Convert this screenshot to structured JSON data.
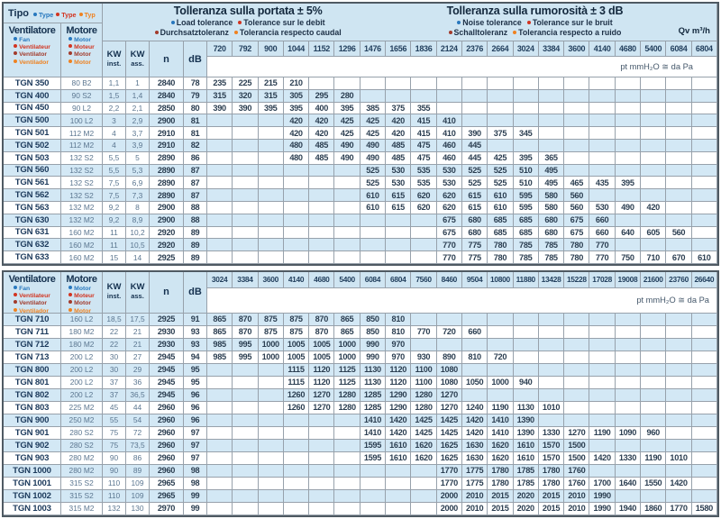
{
  "page": {
    "qv_unit_label": "Qv m³/h",
    "pt_unit_label": "pt mmH₂O ≅ da Pa"
  },
  "legend": {
    "tipo_label": "Tipo",
    "tipo_items": [
      {
        "text": "Type",
        "c": "blue"
      },
      {
        "text": "Type",
        "c": "red"
      },
      {
        "text": "Typ",
        "c": "orange"
      }
    ],
    "flow_title": "Tolleranza sulla portata ± 5%",
    "flow_lines": [
      [
        {
          "text": "Load tolerance",
          "c": "blue"
        },
        {
          "text": "Tolerance sur le debit",
          "c": "red"
        }
      ],
      [
        {
          "text": "Durchsatztoleranz",
          "c": "darkred"
        },
        {
          "text": "Tolerancia respecto caudal",
          "c": "orange"
        }
      ]
    ],
    "noise_title": "Tolleranza sulla rumorosità ± 3 dB",
    "noise_lines": [
      [
        {
          "text": "Noise tolerance",
          "c": "blue"
        },
        {
          "text": "Tolerance sur le bruit",
          "c": "red"
        }
      ],
      [
        {
          "text": "Schalltoleranz",
          "c": "darkred"
        },
        {
          "text": "Tolerancia respecto a ruido",
          "c": "orange"
        }
      ]
    ]
  },
  "column_headers": {
    "ventilatore_label": "Ventilatore",
    "ventilatore_items": [
      {
        "text": "Fan",
        "c": "blue"
      },
      {
        "text": "Ventilateur",
        "c": "red"
      },
      {
        "text": "Ventilator",
        "c": "darkred"
      },
      {
        "text": "Ventilador",
        "c": "orange"
      }
    ],
    "motore_label": "Motore",
    "motore_items": [
      {
        "text": "Motor",
        "c": "blue"
      },
      {
        "text": "Moteur",
        "c": "red"
      },
      {
        "text": "Motor",
        "c": "darkred"
      },
      {
        "text": "Motor",
        "c": "orange"
      }
    ],
    "kw_inst": {
      "top": "KW",
      "bottom": "inst."
    },
    "kw_ass": {
      "top": "KW",
      "bottom": "ass."
    },
    "n_label": "n",
    "db_label": "dB"
  },
  "colors": {
    "accent_blue": "#2878be",
    "accent_red": "#d23420",
    "accent_darkred": "#a23b2c",
    "accent_orange": "#ef8220",
    "header_bg": "#cfe5f2",
    "row_alt_bg": "#d3e8f5"
  },
  "table1": {
    "qv_columns": [
      720,
      792,
      900,
      1044,
      1152,
      1296,
      1476,
      1656,
      1836,
      2124,
      2376,
      2664,
      3024,
      3384,
      3600,
      4140,
      4680,
      5400,
      6084,
      6804
    ],
    "rows": [
      {
        "type": "TGN 350",
        "motor": "80 B2",
        "kw_inst": "1,1",
        "kw_ass": "1",
        "n": "2840",
        "db": "78",
        "start": 0,
        "values": [
          235,
          225,
          215,
          210
        ]
      },
      {
        "type": "TGN 400",
        "motor": "90 S2",
        "kw_inst": "1,5",
        "kw_ass": "1,4",
        "n": "2840",
        "db": "79",
        "start": 0,
        "values": [
          315,
          320,
          315,
          305,
          295,
          280
        ]
      },
      {
        "type": "TGN 450",
        "motor": "90 L2",
        "kw_inst": "2,2",
        "kw_ass": "2,1",
        "n": "2850",
        "db": "80",
        "start": 0,
        "values": [
          390,
          390,
          395,
          395,
          400,
          395,
          385,
          375,
          355
        ]
      },
      {
        "type": "TGN 500",
        "motor": "100 L2",
        "kw_inst": "3",
        "kw_ass": "2,9",
        "n": "2900",
        "db": "81",
        "start": 3,
        "values": [
          420,
          420,
          425,
          425,
          420,
          415,
          410
        ]
      },
      {
        "type": "TGN 501",
        "motor": "112 M2",
        "kw_inst": "4",
        "kw_ass": "3,7",
        "n": "2910",
        "db": "81",
        "start": 3,
        "values": [
          420,
          420,
          425,
          425,
          420,
          415,
          410,
          390,
          375,
          345
        ]
      },
      {
        "type": "TGN 502",
        "motor": "112 M2",
        "kw_inst": "4",
        "kw_ass": "3,9",
        "n": "2910",
        "db": "82",
        "start": 3,
        "values": [
          480,
          485,
          490,
          490,
          485,
          475,
          460,
          445
        ]
      },
      {
        "type": "TGN 503",
        "motor": "132 S2",
        "kw_inst": "5,5",
        "kw_ass": "5",
        "n": "2890",
        "db": "86",
        "start": 3,
        "values": [
          480,
          485,
          490,
          490,
          485,
          475,
          460,
          445,
          425,
          395,
          365
        ]
      },
      {
        "type": "TGN 560",
        "motor": "132 S2",
        "kw_inst": "5,5",
        "kw_ass": "5,3",
        "n": "2890",
        "db": "87",
        "start": 6,
        "values": [
          525,
          530,
          535,
          530,
          525,
          525,
          510,
          495
        ]
      },
      {
        "type": "TGN 561",
        "motor": "132 S2",
        "kw_inst": "7,5",
        "kw_ass": "6,9",
        "n": "2890",
        "db": "87",
        "start": 6,
        "values": [
          525,
          530,
          535,
          530,
          525,
          525,
          510,
          495,
          465,
          435,
          395
        ]
      },
      {
        "type": "TGN 562",
        "motor": "132 S2",
        "kw_inst": "7,5",
        "kw_ass": "7,3",
        "n": "2890",
        "db": "87",
        "start": 6,
        "values": [
          610,
          615,
          620,
          620,
          615,
          610,
          595,
          580,
          560
        ]
      },
      {
        "type": "TGN 563",
        "motor": "132 M2",
        "kw_inst": "9,2",
        "kw_ass": "8",
        "n": "2900",
        "db": "88",
        "start": 6,
        "values": [
          610,
          615,
          620,
          620,
          615,
          610,
          595,
          580,
          560,
          530,
          490,
          420
        ]
      },
      {
        "type": "TGN 630",
        "motor": "132 M2",
        "kw_inst": "9,2",
        "kw_ass": "8,9",
        "n": "2900",
        "db": "88",
        "start": 9,
        "values": [
          675,
          680,
          685,
          685,
          680,
          675,
          660
        ]
      },
      {
        "type": "TGN 631",
        "motor": "160 M2",
        "kw_inst": "11",
        "kw_ass": "10,2",
        "n": "2920",
        "db": "89",
        "start": 9,
        "values": [
          675,
          680,
          685,
          685,
          680,
          675,
          660,
          640,
          605,
          560
        ]
      },
      {
        "type": "TGN 632",
        "motor": "160 M2",
        "kw_inst": "11",
        "kw_ass": "10,5",
        "n": "2920",
        "db": "89",
        "start": 9,
        "values": [
          770,
          775,
          780,
          785,
          785,
          780,
          770
        ]
      },
      {
        "type": "TGN 633",
        "motor": "160 M2",
        "kw_inst": "15",
        "kw_ass": "14",
        "n": "2925",
        "db": "89",
        "start": 9,
        "values": [
          770,
          775,
          780,
          785,
          785,
          780,
          770,
          750,
          710,
          670,
          610
        ]
      }
    ]
  },
  "table2": {
    "qv_columns": [
      3024,
      3384,
      3600,
      4140,
      4680,
      5400,
      6084,
      6804,
      7560,
      8460,
      9504,
      10800,
      11880,
      13428,
      15228,
      17028,
      19008,
      21600,
      23760,
      26640
    ],
    "rows": [
      {
        "type": "TGN 710",
        "motor": "160 L2",
        "kw_inst": "18,5",
        "kw_ass": "17,5",
        "n": "2925",
        "db": "91",
        "start": 0,
        "values": [
          865,
          870,
          875,
          875,
          870,
          865,
          850,
          810
        ]
      },
      {
        "type": "TGN 711",
        "motor": "180 M2",
        "kw_inst": "22",
        "kw_ass": "21",
        "n": "2930",
        "db": "93",
        "start": 0,
        "values": [
          865,
          870,
          875,
          875,
          870,
          865,
          850,
          810,
          770,
          720,
          660
        ]
      },
      {
        "type": "TGN 712",
        "motor": "180 M2",
        "kw_inst": "22",
        "kw_ass": "21",
        "n": "2930",
        "db": "93",
        "start": 0,
        "values": [
          985,
          995,
          1000,
          1005,
          1005,
          1000,
          990,
          970
        ]
      },
      {
        "type": "TGN 713",
        "motor": "200 L2",
        "kw_inst": "30",
        "kw_ass": "27",
        "n": "2945",
        "db": "94",
        "start": 0,
        "values": [
          985,
          995,
          1000,
          1005,
          1005,
          1000,
          990,
          970,
          930,
          890,
          810,
          720
        ]
      },
      {
        "type": "TGN 800",
        "motor": "200 L2",
        "kw_inst": "30",
        "kw_ass": "29",
        "n": "2945",
        "db": "95",
        "start": 3,
        "values": [
          1115,
          1120,
          1125,
          1130,
          1120,
          1100,
          1080
        ]
      },
      {
        "type": "TGN 801",
        "motor": "200 L2",
        "kw_inst": "37",
        "kw_ass": "36",
        "n": "2945",
        "db": "95",
        "start": 3,
        "values": [
          1115,
          1120,
          1125,
          1130,
          1120,
          1100,
          1080,
          1050,
          1000,
          940
        ]
      },
      {
        "type": "TGN 802",
        "motor": "200 L2",
        "kw_inst": "37",
        "kw_ass": "36,5",
        "n": "2945",
        "db": "96",
        "start": 3,
        "values": [
          1260,
          1270,
          1280,
          1285,
          1290,
          1280,
          1270
        ]
      },
      {
        "type": "TGN 803",
        "motor": "225 M2",
        "kw_inst": "45",
        "kw_ass": "44",
        "n": "2960",
        "db": "96",
        "start": 3,
        "values": [
          1260,
          1270,
          1280,
          1285,
          1290,
          1280,
          1270,
          1240,
          1190,
          1130,
          1010
        ]
      },
      {
        "type": "TGN 900",
        "motor": "250 M2",
        "kw_inst": "55",
        "kw_ass": "54",
        "n": "2960",
        "db": "96",
        "start": 6,
        "values": [
          1410,
          1420,
          1425,
          1425,
          1420,
          1410,
          1390
        ]
      },
      {
        "type": "TGN 901",
        "motor": "280 S2",
        "kw_inst": "75",
        "kw_ass": "72",
        "n": "2960",
        "db": "97",
        "start": 6,
        "values": [
          1410,
          1420,
          1425,
          1425,
          1420,
          1410,
          1390,
          1330,
          1270,
          1190,
          1090,
          960
        ]
      },
      {
        "type": "TGN 902",
        "motor": "280 S2",
        "kw_inst": "75",
        "kw_ass": "73,5",
        "n": "2960",
        "db": "97",
        "start": 6,
        "values": [
          1595,
          1610,
          1620,
          1625,
          1630,
          1620,
          1610,
          1570,
          1500
        ]
      },
      {
        "type": "TGN 903",
        "motor": "280 M2",
        "kw_inst": "90",
        "kw_ass": "86",
        "n": "2960",
        "db": "97",
        "start": 6,
        "values": [
          1595,
          1610,
          1620,
          1625,
          1630,
          1620,
          1610,
          1570,
          1500,
          1420,
          1330,
          1190,
          1010
        ]
      },
      {
        "type": "TGN 1000",
        "motor": "280 M2",
        "kw_inst": "90",
        "kw_ass": "89",
        "n": "2960",
        "db": "98",
        "start": 9,
        "values": [
          1770,
          1775,
          1780,
          1785,
          1780,
          1760
        ]
      },
      {
        "type": "TGN 1001",
        "motor": "315 S2",
        "kw_inst": "110",
        "kw_ass": "109",
        "n": "2965",
        "db": "98",
        "start": 9,
        "values": [
          1770,
          1775,
          1780,
          1785,
          1780,
          1760,
          1700,
          1640,
          1550,
          1420
        ]
      },
      {
        "type": "TGN 1002",
        "motor": "315 S2",
        "kw_inst": "110",
        "kw_ass": "109",
        "n": "2965",
        "db": "99",
        "start": 9,
        "values": [
          2000,
          2010,
          2015,
          2020,
          2015,
          2010,
          1990
        ]
      },
      {
        "type": "TGN 1003",
        "motor": "315 M2",
        "kw_inst": "132",
        "kw_ass": "130",
        "n": "2970",
        "db": "99",
        "start": 9,
        "values": [
          2000,
          2010,
          2015,
          2020,
          2015,
          2010,
          1990,
          1940,
          1860,
          1770,
          1580
        ]
      }
    ]
  }
}
